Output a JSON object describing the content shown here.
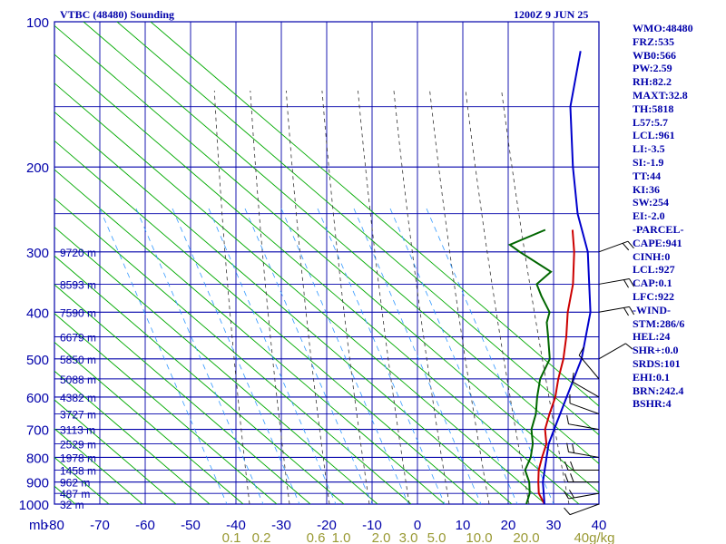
{
  "header": {
    "title": "VTBC (48480) Sounding",
    "time": "1200Z  9 JUN 25"
  },
  "indices": [
    "WMO:48480",
    "FRZ:535",
    "WB0:566",
    "PW:2.59",
    "RH:82.2",
    "MAXT:32.8",
    "TH:5818",
    "L57:5.7",
    "LCL:961",
    "LI:-3.5",
    "SI:-1.9",
    "TT:44",
    "KI:36",
    "SW:254",
    "EI:-2.0",
    "-PARCEL-",
    "CAPE:941",
    "CINH:0",
    "LCL:927",
    "CAP:0.1",
    "LFC:922",
    "-WIND-",
    "STM:286/6",
    "HEL:24",
    "SHR+:0.0",
    "SRDS:101",
    "EHI:0.1",
    "BRN:242.4",
    "BSHR:4"
  ],
  "colors": {
    "grid": "#0000aa",
    "dry_adiabat": "#00aa00",
    "moist_adiabat": "#333333",
    "mixing_ratio": "#3399ff",
    "temperature": "#cc0000",
    "dewpoint": "#006600",
    "parcel": "#0000cc",
    "wind": "#000000"
  },
  "chart_data": {
    "type": "line",
    "title": "VTBC (48480) Sounding",
    "xlabel": "",
    "ylabel": "mb",
    "x_unit": "°C (skewed)",
    "xlim": [
      -80,
      40
    ],
    "ylim": [
      1000,
      100
    ],
    "y_scale": "log",
    "grid": true,
    "pressure_ticks": [
      100,
      200,
      300,
      400,
      500,
      600,
      700,
      800,
      900,
      1000
    ],
    "temperature_ticks": [
      -80,
      -70,
      -60,
      -50,
      -40,
      -30,
      -20,
      -10,
      0,
      10,
      20,
      30,
      40
    ],
    "temperature_tick_labels": [
      "-80",
      "-70",
      "-60",
      "-50",
      "-40",
      "-30",
      "-20",
      "-10",
      "0",
      "10",
      "20",
      "30",
      "40"
    ],
    "mixing_ratio_labels": [
      "0.1",
      "0.2",
      "0.6",
      "1.0",
      "2.0",
      "3.0",
      "5.0",
      "10.0",
      "20.0",
      "40g/kg"
    ],
    "height_labels": [
      {
        "p": 1000,
        "label": "32 m"
      },
      {
        "p": 950,
        "label": "487 m"
      },
      {
        "p": 900,
        "label": "962 m"
      },
      {
        "p": 850,
        "label": "1458 m"
      },
      {
        "p": 800,
        "label": "1978 m"
      },
      {
        "p": 750,
        "label": "2529 m"
      },
      {
        "p": 700,
        "label": "3113 m"
      },
      {
        "p": 650,
        "label": "3727 m"
      },
      {
        "p": 600,
        "label": "4382 m"
      },
      {
        "p": 550,
        "label": "5088 m"
      },
      {
        "p": 500,
        "label": "5850 m"
      },
      {
        "p": 450,
        "label": "6679 m"
      },
      {
        "p": 400,
        "label": "7590 m"
      },
      {
        "p": 350,
        "label": "8593 m"
      },
      {
        "p": 300,
        "label": "9720 m"
      }
    ],
    "series": [
      {
        "key": "temperature",
        "points": [
          [
            1000,
            28
          ],
          [
            950,
            24
          ],
          [
            900,
            21
          ],
          [
            850,
            18
          ],
          [
            800,
            15.5
          ],
          [
            750,
            13
          ],
          [
            700,
            9
          ],
          [
            650,
            6
          ],
          [
            600,
            3
          ],
          [
            550,
            -1
          ],
          [
            500,
            -5
          ],
          [
            450,
            -10
          ],
          [
            400,
            -16
          ],
          [
            350,
            -22
          ],
          [
            300,
            -30
          ],
          [
            270,
            -36
          ]
        ]
      },
      {
        "key": "dewpoint",
        "points": [
          [
            1000,
            24
          ],
          [
            950,
            22
          ],
          [
            900,
            19
          ],
          [
            850,
            15
          ],
          [
            800,
            13
          ],
          [
            750,
            10
          ],
          [
            700,
            6
          ],
          [
            650,
            3
          ],
          [
            600,
            -1
          ],
          [
            550,
            -5
          ],
          [
            500,
            -8
          ],
          [
            450,
            -14
          ],
          [
            420,
            -18
          ],
          [
            400,
            -20
          ],
          [
            370,
            -26
          ],
          [
            350,
            -30
          ],
          [
            330,
            -30
          ],
          [
            300,
            -42
          ],
          [
            290,
            -46
          ],
          [
            270,
            -42
          ]
        ]
      },
      {
        "key": "parcel",
        "points": [
          [
            1000,
            28
          ],
          [
            900,
            22
          ],
          [
            800,
            16.5
          ],
          [
            750,
            13.5
          ],
          [
            700,
            11
          ],
          [
            600,
            5.5
          ],
          [
            500,
            -1
          ],
          [
            400,
            -11
          ],
          [
            300,
            -27
          ],
          [
            250,
            -39
          ],
          [
            200,
            -52
          ],
          [
            150,
            -68
          ],
          [
            115,
            -80
          ]
        ]
      }
    ],
    "winds": [
      {
        "p": 1000,
        "dir": 250,
        "spd": 10
      },
      {
        "p": 950,
        "dir": 260,
        "spd": 15
      },
      {
        "p": 900,
        "dir": 270,
        "spd": 20
      },
      {
        "p": 850,
        "dir": 270,
        "spd": 20
      },
      {
        "p": 800,
        "dir": 280,
        "spd": 15
      },
      {
        "p": 700,
        "dir": 280,
        "spd": 10
      },
      {
        "p": 650,
        "dir": 290,
        "spd": 10
      },
      {
        "p": 600,
        "dir": 300,
        "spd": 10
      },
      {
        "p": 550,
        "dir": 320,
        "spd": 10
      },
      {
        "p": 500,
        "dir": 60,
        "spd": 10
      },
      {
        "p": 400,
        "dir": 80,
        "spd": 20
      },
      {
        "p": 350,
        "dir": 80,
        "spd": 15
      },
      {
        "p": 300,
        "dir": 70,
        "spd": 20
      }
    ]
  }
}
